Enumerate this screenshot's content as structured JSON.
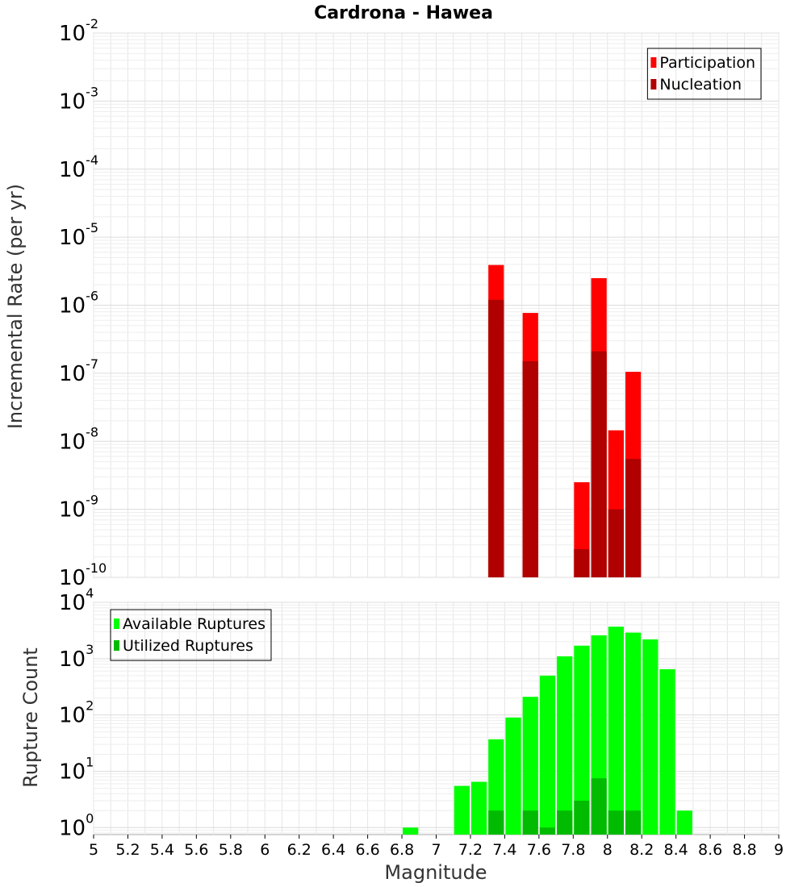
{
  "chart_data": [
    {
      "type": "bar",
      "title": "Cardrona - Hawea",
      "ylabel": "Incremental Rate (per yr)",
      "xlabel": "",
      "yscale": "log",
      "ylim": [
        1e-10,
        0.01
      ],
      "xlim": [
        5,
        9
      ],
      "legend_position": "top-right",
      "overlay": true,
      "grid": true,
      "series": [
        {
          "name": "Participation",
          "color": "#ff0000",
          "points": [
            [
              7.35,
              3.9e-06
            ],
            [
              7.55,
              7.7e-07
            ],
            [
              7.85,
              2.5e-09
            ],
            [
              7.95,
              2.5e-06
            ],
            [
              8.05,
              1.45e-08
            ],
            [
              8.15,
              1.05e-07
            ]
          ]
        },
        {
          "name": "Nucleation",
          "color": "#b00000",
          "points": [
            [
              7.35,
              1.2e-06
            ],
            [
              7.55,
              1.5e-07
            ],
            [
              7.85,
              2.6e-10
            ],
            [
              7.95,
              2.1e-07
            ],
            [
              8.05,
              1e-09
            ],
            [
              8.15,
              5.5e-09
            ]
          ]
        }
      ]
    },
    {
      "type": "bar",
      "title": "",
      "ylabel": "Rupture Count",
      "xlabel": "Magnitude",
      "yscale": "log",
      "ylim": [
        0.75,
        10000
      ],
      "xlim": [
        5,
        9
      ],
      "legend_position": "top-left",
      "overlay": true,
      "grid": true,
      "x_ticks": [
        "5",
        "5.2",
        "5.4",
        "5.6",
        "5.8",
        "6",
        "6.2",
        "6.4",
        "6.6",
        "6.8",
        "7",
        "7.2",
        "7.4",
        "7.6",
        "7.8",
        "8",
        "8.2",
        "8.4",
        "8.6",
        "8.8",
        "9"
      ],
      "series": [
        {
          "name": "Available Ruptures",
          "color": "#00ff00",
          "points": [
            [
              6.85,
              1
            ],
            [
              7.15,
              5.5
            ],
            [
              7.25,
              6.5
            ],
            [
              7.35,
              37
            ],
            [
              7.45,
              90
            ],
            [
              7.55,
              210
            ],
            [
              7.65,
              500
            ],
            [
              7.75,
              1100
            ],
            [
              7.85,
              1700
            ],
            [
              7.95,
              2600
            ],
            [
              8.05,
              3700
            ],
            [
              8.15,
              2900
            ],
            [
              8.25,
              2200
            ],
            [
              8.35,
              650
            ],
            [
              8.45,
              2
            ]
          ]
        },
        {
          "name": "Utilized Ruptures",
          "color": "#00bb00",
          "points": [
            [
              7.35,
              2
            ],
            [
              7.55,
              2
            ],
            [
              7.65,
              1
            ],
            [
              7.75,
              2
            ],
            [
              7.85,
              3
            ],
            [
              7.95,
              7.5
            ],
            [
              8.05,
              2
            ],
            [
              8.15,
              2
            ]
          ]
        }
      ]
    }
  ]
}
